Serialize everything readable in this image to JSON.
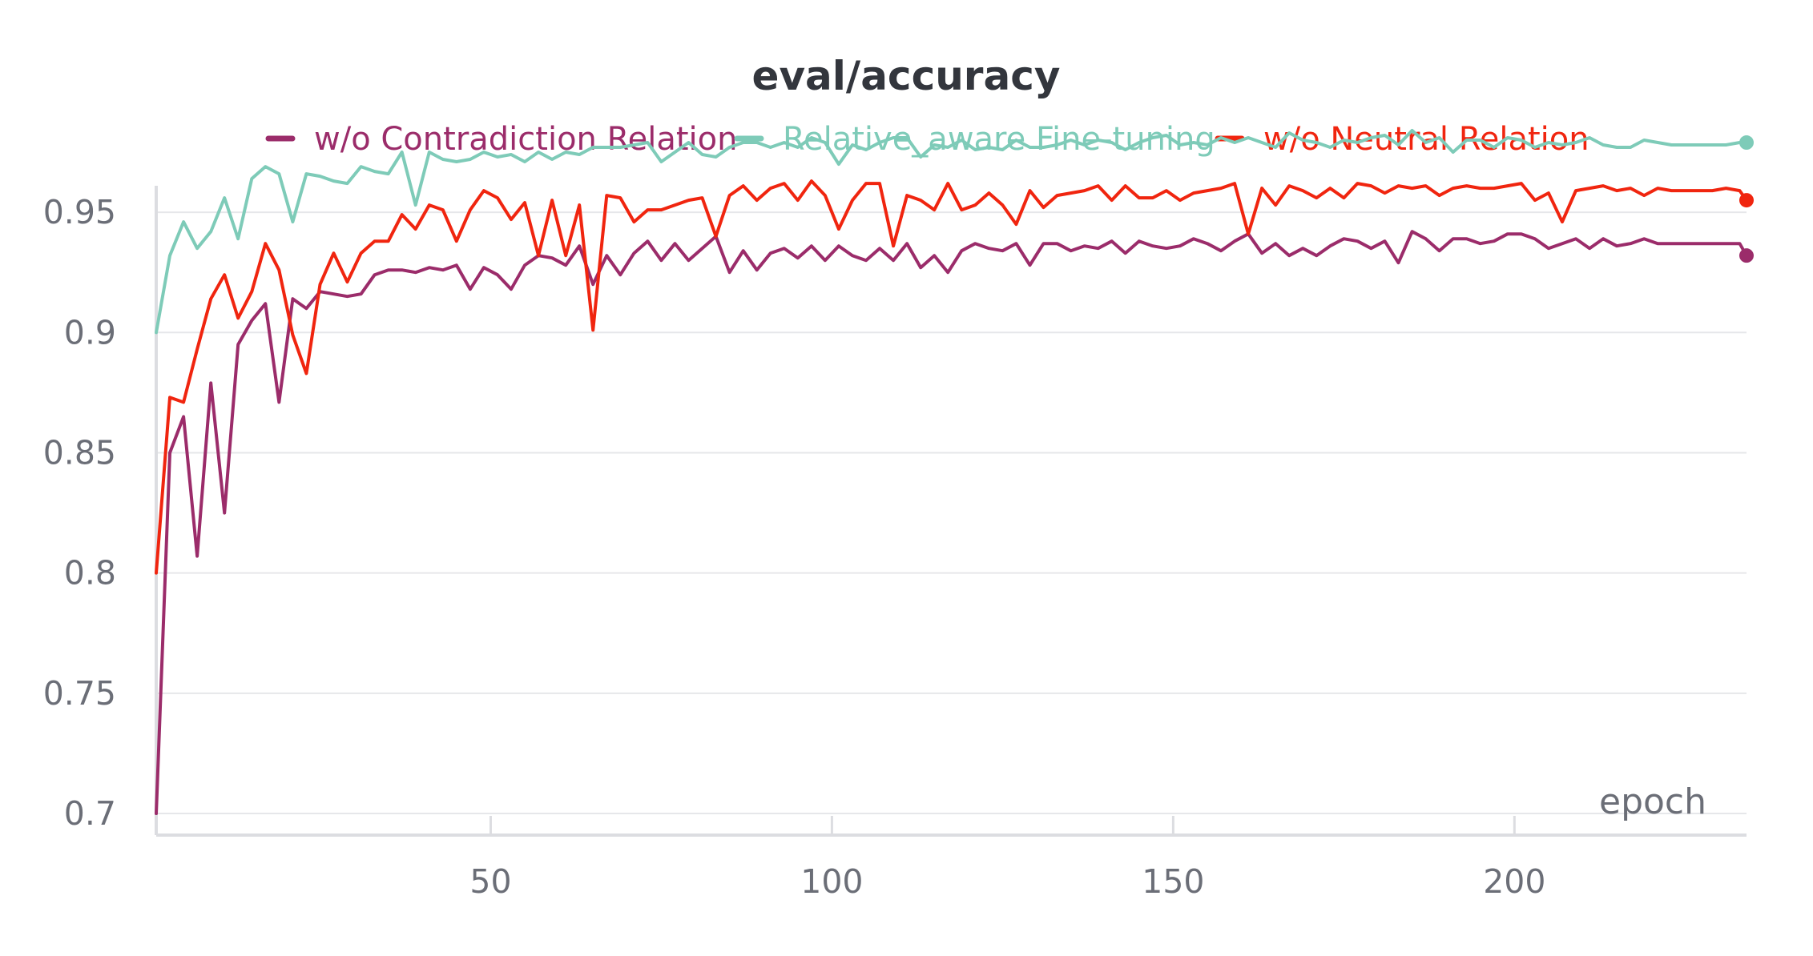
{
  "chart_data": {
    "type": "line",
    "title": "eval/accuracy",
    "xlabel": "epoch",
    "ylabel": "",
    "xlim": [
      1,
      234
    ],
    "ylim": [
      0.7,
      0.985
    ],
    "x_ticks": [
      50,
      100,
      150,
      200
    ],
    "x_tick_labels": [
      "50",
      "100",
      "150",
      "200"
    ],
    "y_ticks": [
      0.7,
      0.75,
      0.8,
      0.85,
      0.9,
      0.95
    ],
    "y_tick_labels": [
      "0.7",
      "0.75",
      "0.8",
      "0.85",
      "0.9",
      "0.95"
    ],
    "grid": true,
    "legend_position": "top",
    "x_step": 2,
    "series": [
      {
        "name": "w/o Contradiction Relation",
        "color": "#9b2c6a",
        "values": [
          0.7,
          0.85,
          0.865,
          0.807,
          0.879,
          0.825,
          0.895,
          0.905,
          0.912,
          0.871,
          0.914,
          0.91,
          0.917,
          0.916,
          0.915,
          0.916,
          0.924,
          0.926,
          0.926,
          0.925,
          0.927,
          0.926,
          0.928,
          0.918,
          0.927,
          0.924,
          0.918,
          0.928,
          0.932,
          0.931,
          0.928,
          0.936,
          0.92,
          0.932,
          0.924,
          0.933,
          0.938,
          0.93,
          0.937,
          0.93,
          0.935,
          0.94,
          0.925,
          0.934,
          0.926,
          0.933,
          0.935,
          0.931,
          0.936,
          0.93,
          0.936,
          0.932,
          0.93,
          0.935,
          0.93,
          0.937,
          0.927,
          0.932,
          0.925,
          0.934,
          0.937,
          0.935,
          0.934,
          0.937,
          0.928,
          0.937,
          0.937,
          0.934,
          0.936,
          0.935,
          0.938,
          0.933,
          0.938,
          0.936,
          0.935,
          0.936,
          0.939,
          0.937,
          0.934,
          0.938,
          0.941,
          0.933,
          0.937,
          0.932,
          0.935,
          0.932,
          0.936,
          0.939,
          0.938,
          0.935,
          0.938,
          0.929,
          0.942,
          0.939,
          0.934,
          0.939,
          0.939,
          0.937,
          0.938,
          0.941,
          0.941,
          0.939,
          0.935,
          0.937,
          0.939,
          0.935,
          0.939,
          0.936,
          0.937,
          0.939,
          0.937,
          0.937,
          0.937,
          0.937,
          0.937,
          0.937,
          0.937,
          0.932
        ]
      },
      {
        "name": "Relative_aware Fine-tuning",
        "color": "#7ecbb8",
        "values": [
          0.9,
          0.932,
          0.946,
          0.935,
          0.942,
          0.956,
          0.939,
          0.964,
          0.969,
          0.966,
          0.946,
          0.966,
          0.965,
          0.963,
          0.962,
          0.969,
          0.967,
          0.966,
          0.975,
          0.953,
          0.975,
          0.972,
          0.971,
          0.972,
          0.975,
          0.973,
          0.974,
          0.971,
          0.975,
          0.972,
          0.975,
          0.974,
          0.977,
          0.977,
          0.977,
          0.978,
          0.979,
          0.971,
          0.975,
          0.979,
          0.974,
          0.973,
          0.977,
          0.979,
          0.979,
          0.977,
          0.979,
          0.977,
          0.981,
          0.979,
          0.97,
          0.978,
          0.976,
          0.979,
          0.981,
          0.981,
          0.973,
          0.978,
          0.977,
          0.98,
          0.976,
          0.977,
          0.976,
          0.98,
          0.977,
          0.977,
          0.978,
          0.98,
          0.978,
          0.98,
          0.979,
          0.976,
          0.979,
          0.981,
          0.982,
          0.978,
          0.979,
          0.978,
          0.981,
          0.979,
          0.981,
          0.979,
          0.977,
          0.983,
          0.98,
          0.979,
          0.977,
          0.98,
          0.979,
          0.981,
          0.982,
          0.978,
          0.984,
          0.979,
          0.981,
          0.975,
          0.98,
          0.98,
          0.977,
          0.981,
          0.98,
          0.977,
          0.979,
          0.978,
          0.979,
          0.981,
          0.978,
          0.977,
          0.977,
          0.98,
          0.979,
          0.978,
          0.978,
          0.978,
          0.978,
          0.978,
          0.979,
          0.979
        ]
      },
      {
        "name": "w/o Neutral Relation",
        "color": "#f0250f",
        "values": [
          0.8,
          0.873,
          0.871,
          0.893,
          0.914,
          0.924,
          0.906,
          0.917,
          0.937,
          0.926,
          0.899,
          0.883,
          0.92,
          0.933,
          0.921,
          0.933,
          0.938,
          0.938,
          0.949,
          0.943,
          0.953,
          0.951,
          0.938,
          0.951,
          0.959,
          0.956,
          0.947,
          0.954,
          0.932,
          0.955,
          0.932,
          0.953,
          0.901,
          0.957,
          0.956,
          0.946,
          0.951,
          0.951,
          0.953,
          0.955,
          0.956,
          0.94,
          0.957,
          0.961,
          0.955,
          0.96,
          0.962,
          0.955,
          0.963,
          0.957,
          0.943,
          0.955,
          0.962,
          0.962,
          0.936,
          0.957,
          0.955,
          0.951,
          0.962,
          0.951,
          0.953,
          0.958,
          0.953,
          0.945,
          0.959,
          0.952,
          0.957,
          0.958,
          0.959,
          0.961,
          0.955,
          0.961,
          0.956,
          0.956,
          0.959,
          0.955,
          0.958,
          0.959,
          0.96,
          0.962,
          0.941,
          0.96,
          0.953,
          0.961,
          0.959,
          0.956,
          0.96,
          0.956,
          0.962,
          0.961,
          0.958,
          0.961,
          0.96,
          0.961,
          0.957,
          0.96,
          0.961,
          0.96,
          0.96,
          0.961,
          0.962,
          0.955,
          0.958,
          0.946,
          0.959,
          0.96,
          0.961,
          0.959,
          0.96,
          0.957,
          0.96,
          0.959,
          0.959,
          0.959,
          0.959,
          0.96,
          0.959,
          0.955
        ]
      }
    ]
  }
}
